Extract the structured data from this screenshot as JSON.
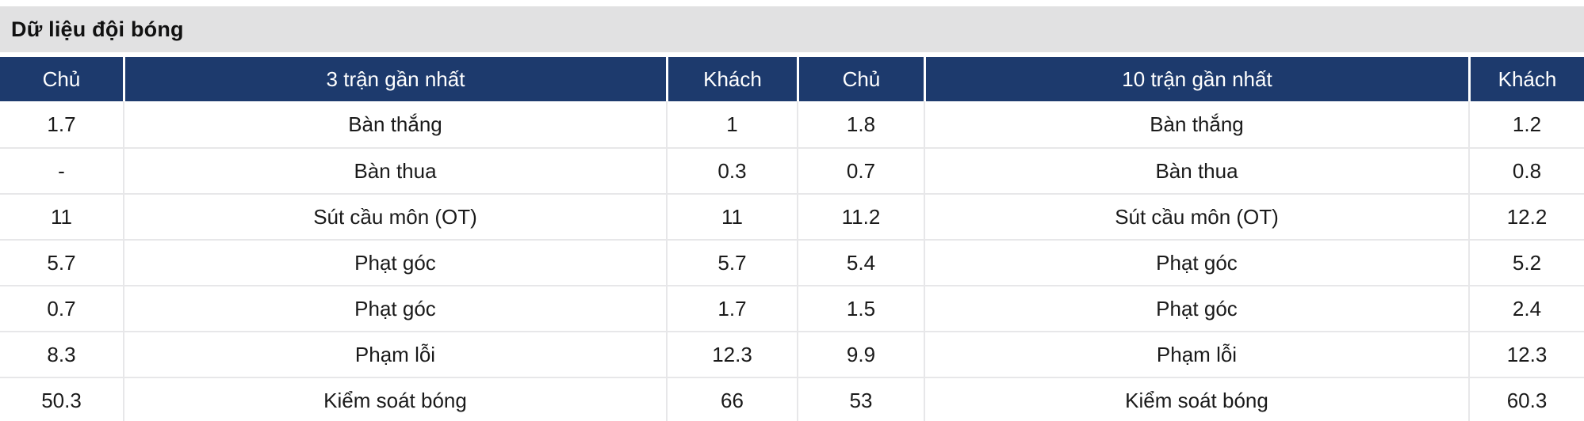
{
  "title": "Dữ liệu đội bóng",
  "colors": {
    "header_bg": "#1d3a6d",
    "header_text": "#ffffff",
    "title_bg": "#e1e1e2",
    "divider": "#e7e7e9",
    "text": "#1a1a1a"
  },
  "table": {
    "headers": [
      "Chủ",
      "3 trận gần nhất",
      "Khách",
      "Chủ",
      "10 trận gần nhất",
      "Khách"
    ],
    "rows": [
      [
        "1.7",
        "Bàn thắng",
        "1",
        "1.8",
        "Bàn thắng",
        "1.2"
      ],
      [
        "-",
        "Bàn thua",
        "0.3",
        "0.7",
        "Bàn thua",
        "0.8"
      ],
      [
        "11",
        "Sút cầu môn (OT)",
        "11",
        "11.2",
        "Sút cầu môn (OT)",
        "12.2"
      ],
      [
        "5.7",
        "Phạt góc",
        "5.7",
        "5.4",
        "Phạt góc",
        "5.2"
      ],
      [
        "0.7",
        "Phạt góc",
        "1.7",
        "1.5",
        "Phạt góc",
        "2.4"
      ],
      [
        "8.3",
        "Phạm lỗi",
        "12.3",
        "9.9",
        "Phạm lỗi",
        "12.3"
      ],
      [
        "50.3",
        "Kiểm soát bóng",
        "66",
        "53",
        "Kiểm soát bóng",
        "60.3"
      ]
    ]
  }
}
